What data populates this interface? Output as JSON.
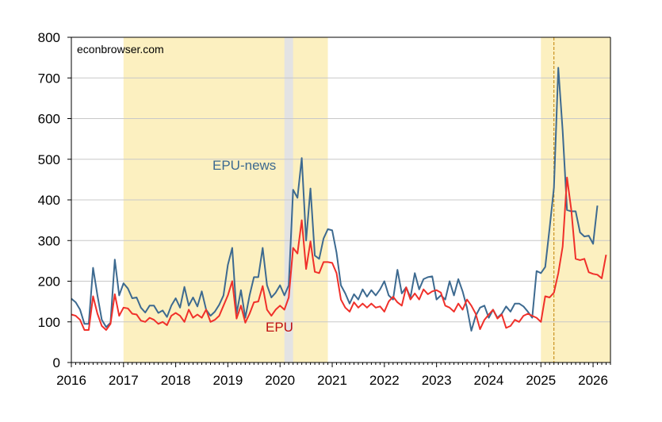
{
  "chart_data": {
    "type": "line",
    "watermark": "econbrowser.com",
    "x_start": "2016-01",
    "x_end": "2026-05",
    "x_ticks": [
      "2016",
      "2017",
      "2018",
      "2019",
      "2020",
      "2021",
      "2022",
      "2023",
      "2024",
      "2025",
      "2026"
    ],
    "ylim": [
      0,
      800
    ],
    "y_ticks": [
      "0",
      "100",
      "200",
      "300",
      "400",
      "500",
      "600",
      "700",
      "800"
    ],
    "grid": "horizontal",
    "shading": [
      {
        "start": "2017-01",
        "end": "2020-12",
        "color": "#fcf0c0"
      },
      {
        "start": "2025-01",
        "end": "2026-05",
        "color": "#fcf0c0"
      },
      {
        "start": "2020-02",
        "end": "2020-04",
        "color": "#e3e3e3"
      }
    ],
    "vline": {
      "date": "2025-04",
      "color": "#c08000"
    },
    "colors": {
      "epu_news": "#3d6a90",
      "epu": "#f0302a"
    },
    "series": [
      {
        "name": "EPU-news",
        "key": "epu_news",
        "start": "2016-01",
        "values": [
          157,
          148,
          130,
          95,
          95,
          233,
          165,
          105,
          87,
          98,
          253,
          165,
          195,
          182,
          158,
          160,
          135,
          123,
          140,
          140,
          122,
          128,
          112,
          140,
          158,
          135,
          186,
          140,
          160,
          138,
          175,
          130,
          115,
          125,
          142,
          165,
          240,
          282,
          120,
          178,
          110,
          165,
          210,
          210,
          282,
          190,
          160,
          172,
          190,
          165,
          190,
          425,
          405,
          503,
          300,
          428,
          263,
          255,
          305,
          328,
          325,
          270,
          190,
          170,
          145,
          168,
          155,
          180,
          162,
          178,
          165,
          180,
          200,
          165,
          155,
          228,
          170,
          185,
          160,
          220,
          180,
          205,
          210,
          212,
          155,
          165,
          155,
          200,
          165,
          205,
          175,
          135,
          78,
          115,
          135,
          140,
          110,
          130,
          110,
          120,
          138,
          125,
          145,
          145,
          138,
          125,
          110,
          225,
          220,
          235,
          330,
          430,
          725,
          570,
          375,
          372,
          372,
          320,
          310,
          312,
          292,
          386
        ],
        "label_text": "EPU-news"
      },
      {
        "name": "EPU",
        "key": "epu",
        "start": "2016-01",
        "values": [
          118,
          115,
          105,
          80,
          80,
          163,
          120,
          90,
          80,
          95,
          168,
          115,
          135,
          133,
          120,
          118,
          103,
          100,
          110,
          105,
          95,
          100,
          92,
          115,
          122,
          115,
          100,
          130,
          110,
          118,
          110,
          130,
          100,
          105,
          115,
          140,
          165,
          200,
          108,
          140,
          98,
          120,
          148,
          150,
          188,
          130,
          115,
          130,
          140,
          130,
          160,
          282,
          268,
          350,
          230,
          298,
          223,
          220,
          247,
          247,
          245,
          220,
          155,
          135,
          125,
          148,
          135,
          145,
          135,
          145,
          135,
          138,
          125,
          150,
          162,
          148,
          140,
          185,
          155,
          170,
          155,
          180,
          168,
          175,
          178,
          172,
          140,
          135,
          125,
          145,
          130,
          155,
          140,
          120,
          82,
          105,
          118,
          130,
          108,
          118,
          85,
          90,
          105,
          100,
          115,
          120,
          115,
          110,
          100,
          163,
          160,
          172,
          220,
          285,
          455,
          375,
          255,
          252,
          255,
          222,
          218,
          216,
          207,
          265
        ],
        "label_text": "EPU"
      }
    ]
  }
}
